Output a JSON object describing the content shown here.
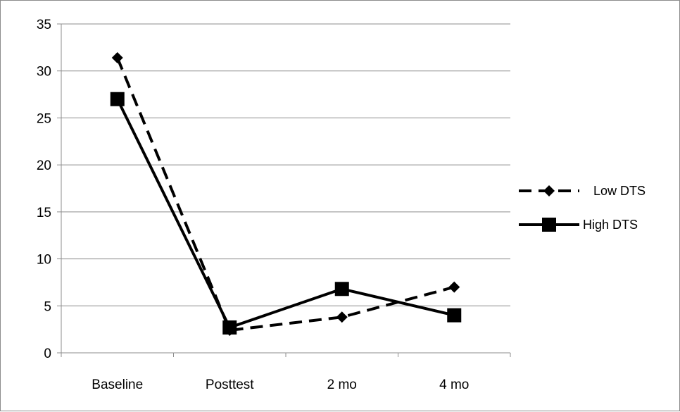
{
  "chart_data": {
    "type": "line",
    "title": "",
    "xlabel": "",
    "ylabel": "",
    "categories": [
      "Baseline",
      "Posttest",
      "2 mo",
      "4 mo"
    ],
    "ylim": [
      0,
      35
    ],
    "yticks": [
      0,
      5,
      10,
      15,
      20,
      25,
      30,
      35
    ],
    "grid": true,
    "legend_position": "right",
    "series": [
      {
        "name": "Low DTS",
        "values": [
          31.4,
          2.4,
          3.8,
          7.0
        ],
        "marker": "diamond",
        "line_style": "dashed",
        "color": "#000000"
      },
      {
        "name": "High DTS",
        "values": [
          27.0,
          2.7,
          6.8,
          4.0
        ],
        "marker": "square",
        "line_style": "solid",
        "color": "#000000"
      }
    ]
  }
}
